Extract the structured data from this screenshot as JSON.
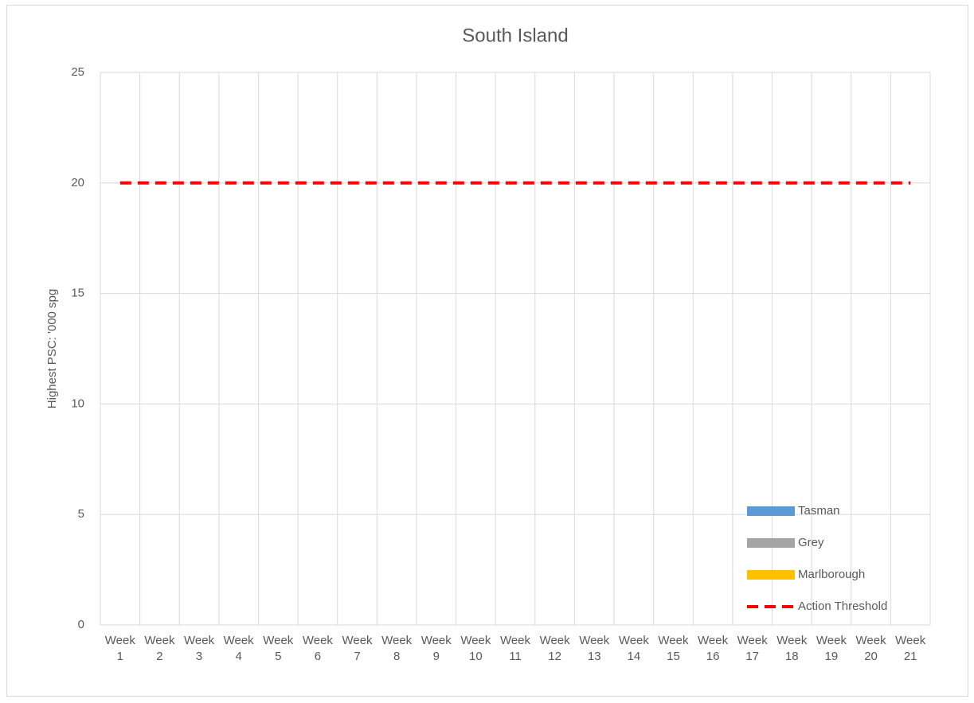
{
  "chart_data": {
    "type": "bar",
    "title": "South Island",
    "y_label": "Highest PSC: '000 spg",
    "categories": [
      "Week 1",
      "Week 2",
      "Week 3",
      "Week 4",
      "Week 5",
      "Week 6",
      "Week 7",
      "Week 8",
      "Week 9",
      "Week 10",
      "Week 11",
      "Week 12",
      "Week 13",
      "Week 14",
      "Week 15",
      "Week 16",
      "Week 17",
      "Week 18",
      "Week 19",
      "Week 20",
      "Week 21"
    ],
    "series": [
      {
        "name": "Tasman",
        "color": "#5b9bd5",
        "values": [
          null,
          null,
          null,
          null,
          null,
          null,
          null,
          null,
          null,
          null,
          null,
          null,
          null,
          null,
          null,
          null,
          null,
          null,
          null,
          null,
          null
        ]
      },
      {
        "name": "Grey",
        "color": "#a5a5a5",
        "values": [
          null,
          null,
          null,
          null,
          null,
          null,
          null,
          null,
          null,
          null,
          null,
          null,
          null,
          null,
          null,
          null,
          null,
          null,
          null,
          null,
          null
        ]
      },
      {
        "name": "Marlborough",
        "color": "#ffc000",
        "values": [
          null,
          null,
          null,
          null,
          null,
          null,
          null,
          null,
          null,
          null,
          null,
          null,
          null,
          null,
          null,
          null,
          null,
          null,
          null,
          null,
          null
        ]
      },
      {
        "name": "Action Threshold",
        "color": "#ff0000",
        "type": "line",
        "dashed": true,
        "values": [
          20,
          20,
          20,
          20,
          20,
          20,
          20,
          20,
          20,
          20,
          20,
          20,
          20,
          20,
          20,
          20,
          20,
          20,
          20,
          20,
          20
        ]
      }
    ],
    "ylim": [
      0,
      25
    ],
    "yticks": [
      0,
      5,
      10,
      15,
      20,
      25
    ],
    "grid": true,
    "legend": "bottom-right"
  }
}
